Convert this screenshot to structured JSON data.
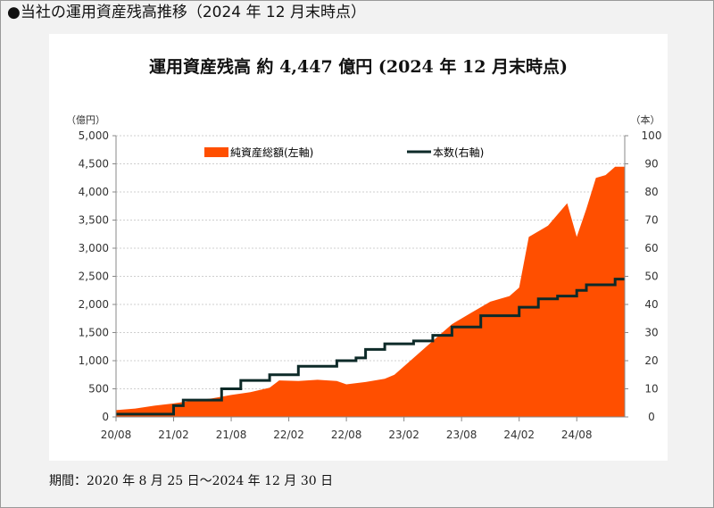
{
  "heading": "●当社の運用資産残高推移（2024 年 12 月末時点）",
  "footer": "期間：2020 年 8 月 25 日～2024 年 12 月 30 日",
  "colors": {
    "area": "#ff4f00",
    "line": "#0d2a28",
    "axis": "#888888",
    "text": "#333333"
  },
  "chart_data": {
    "type": "area",
    "title": "運用資産残高 約 4,447 億円 (2024 年 12 月末時点)",
    "y_unit_left": "（億円）",
    "y_unit_right": "（本）",
    "xlabel": "",
    "ylim_left": [
      0,
      5000
    ],
    "ylim_right": [
      0,
      100
    ],
    "yticks_left": [
      "0",
      "500",
      "1,000",
      "1,500",
      "2,000",
      "2,500",
      "3,000",
      "3,500",
      "4,000",
      "4,500",
      "5,000"
    ],
    "yticks_right": [
      "0",
      "10",
      "20",
      "30",
      "40",
      "50",
      "60",
      "70",
      "80",
      "90",
      "100"
    ],
    "xticks": [
      "20/08",
      "21/02",
      "21/08",
      "22/02",
      "22/08",
      "23/02",
      "23/08",
      "24/02",
      "24/08"
    ],
    "x_start": "2020-08",
    "x_end": "2024-12",
    "grid": "horizontal",
    "legend_position": "top-center",
    "series": [
      {
        "name": "純資産総額(左軸)",
        "axis": "left",
        "style": "area",
        "points": [
          [
            "2020-08",
            120
          ],
          [
            "2020-10",
            150
          ],
          [
            "2020-12",
            200
          ],
          [
            "2021-02",
            240
          ],
          [
            "2021-04",
            290
          ],
          [
            "2021-06",
            330
          ],
          [
            "2021-08",
            390
          ],
          [
            "2021-10",
            440
          ],
          [
            "2021-12",
            520
          ],
          [
            "2022-01",
            650
          ],
          [
            "2022-03",
            640
          ],
          [
            "2022-05",
            660
          ],
          [
            "2022-07",
            640
          ],
          [
            "2022-08",
            580
          ],
          [
            "2022-10",
            620
          ],
          [
            "2022-12",
            680
          ],
          [
            "2023-01",
            750
          ],
          [
            "2023-03",
            1050
          ],
          [
            "2023-05",
            1350
          ],
          [
            "2023-07",
            1650
          ],
          [
            "2023-09",
            1850
          ],
          [
            "2023-11",
            2050
          ],
          [
            "2024-01",
            2150
          ],
          [
            "2024-02",
            2300
          ],
          [
            "2024-03",
            3200
          ],
          [
            "2024-05",
            3400
          ],
          [
            "2024-07",
            3800
          ],
          [
            "2024-08",
            3200
          ],
          [
            "2024-09",
            3700
          ],
          [
            "2024-10",
            4250
          ],
          [
            "2024-11",
            4300
          ],
          [
            "2024-12",
            4447
          ]
        ]
      },
      {
        "name": "本数(右軸)",
        "axis": "right",
        "style": "step",
        "points": [
          [
            "2020-08",
            1
          ],
          [
            "2021-02",
            4
          ],
          [
            "2021-03",
            6
          ],
          [
            "2021-07",
            10
          ],
          [
            "2021-09",
            13
          ],
          [
            "2021-12",
            15
          ],
          [
            "2022-03",
            18
          ],
          [
            "2022-07",
            20
          ],
          [
            "2022-09",
            21
          ],
          [
            "2022-10",
            24
          ],
          [
            "2022-12",
            26
          ],
          [
            "2023-03",
            27
          ],
          [
            "2023-05",
            29
          ],
          [
            "2023-07",
            32
          ],
          [
            "2023-10",
            36
          ],
          [
            "2024-02",
            39
          ],
          [
            "2024-04",
            42
          ],
          [
            "2024-06",
            43
          ],
          [
            "2024-08",
            45
          ],
          [
            "2024-09",
            47
          ],
          [
            "2024-12",
            49
          ]
        ]
      }
    ]
  }
}
